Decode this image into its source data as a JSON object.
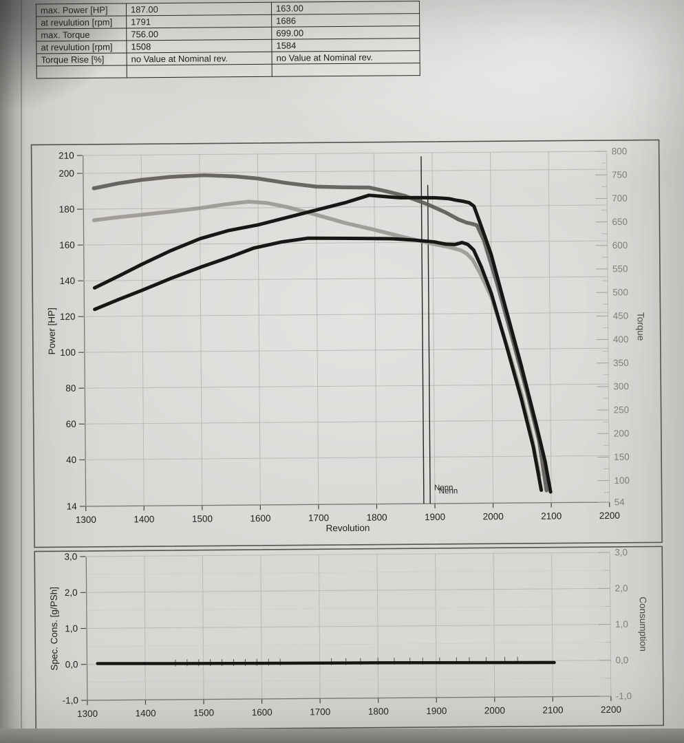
{
  "results_table": {
    "rows": [
      {
        "label": "max. Power [HP]",
        "values": [
          "187.00",
          "163.00"
        ]
      },
      {
        "label": "at revulution [rpm]",
        "values": [
          "1791",
          "1686"
        ]
      },
      {
        "label": "max. Torque",
        "values": [
          "756.00",
          "699.00"
        ]
      },
      {
        "label": "at revulution [rpm]",
        "values": [
          "1508",
          "1584"
        ]
      },
      {
        "label": "Torque Rise [%]",
        "values": [
          "no Value at Nominal rev.",
          "no Value at Nominal rev."
        ]
      },
      {
        "label": "",
        "values": [
          "",
          ""
        ]
      }
    ]
  },
  "colors": {
    "ink_dark": "#1e1e1c",
    "ink_faded": "#82807c",
    "grid": "#bcbab7",
    "grid_minor": "#cfcdca",
    "axis_line": "#7c7a76",
    "frame": "#55534f",
    "power_curve": "#171715",
    "torque_curve_1": "#5e5c5a",
    "torque_curve_2": "#9b9995"
  },
  "chart_data": [
    {
      "type": "line",
      "xlabel": "Revolution",
      "x_range": [
        1300,
        2200
      ],
      "x_ticks": {
        "values": [
          1300,
          1400,
          1500,
          1600,
          1700,
          1800,
          1900,
          2000,
          2100,
          2200
        ],
        "labels": [
          "1300",
          "1400",
          "1500",
          "1600",
          "1700",
          "1800",
          "1900",
          "2000",
          "2100",
          "2200"
        ]
      },
      "left_axis": {
        "label": "Power [HP]",
        "range": [
          14,
          210
        ],
        "tick_values": [
          210,
          200,
          180,
          160,
          140,
          120,
          100,
          80,
          60,
          40,
          14
        ],
        "tick_labels": [
          "210",
          "200",
          "180",
          "160",
          "140",
          "120",
          "100",
          "80",
          "60",
          "40",
          "14"
        ]
      },
      "right_axis": {
        "label": "Torque",
        "range": [
          54,
          800
        ],
        "tick_values": [
          800,
          750,
          700,
          650,
          600,
          550,
          500,
          450,
          400,
          350,
          300,
          250,
          200,
          150,
          100,
          54
        ],
        "tick_labels": [
          "800",
          "750",
          "700",
          "650",
          "600",
          "550",
          "500",
          "450",
          "400",
          "350",
          "300",
          "250",
          "200",
          "150",
          "100",
          "54"
        ],
        "minor_tick_values": [
          775,
          725,
          675,
          625,
          575,
          525,
          475,
          425,
          375,
          325,
          275,
          225,
          175,
          125,
          75
        ]
      },
      "markers": {
        "lines": [
          {
            "name": "nominal-speed-marker-line-1",
            "x": 1881,
            "y_from": 208,
            "y_to": 14
          },
          {
            "name": "nominal-speed-marker-line-2",
            "x": 1892,
            "y_from": 192,
            "y_to": 14
          }
        ],
        "labels": [
          {
            "text": "Nenn",
            "x": 1899,
            "y": 21.5
          },
          {
            "text": "Nenn",
            "x": 1907,
            "y": 19.6
          }
        ]
      },
      "series": [
        {
          "name": "torque-curve-run1",
          "axis": "right",
          "color_key": "torque_curve_1",
          "width": 5.5,
          "points": [
            [
              1318,
              730
            ],
            [
              1360,
              740
            ],
            [
              1400,
              747
            ],
            [
              1450,
              753
            ],
            [
              1508,
              756
            ],
            [
              1560,
              753
            ],
            [
              1600,
              748
            ],
            [
              1650,
              738
            ],
            [
              1700,
              730
            ],
            [
              1745,
              728
            ],
            [
              1791,
              727
            ],
            [
              1820,
              719
            ],
            [
              1852,
              709
            ],
            [
              1892,
              690
            ],
            [
              1922,
              673
            ],
            [
              1944,
              658
            ],
            [
              1958,
              651
            ],
            [
              1968,
              648
            ],
            [
              1976,
              645
            ],
            [
              1988,
              612
            ],
            [
              2010,
              520
            ],
            [
              2035,
              405
            ],
            [
              2060,
              288
            ],
            [
              2080,
              185
            ],
            [
              2092,
              80
            ]
          ]
        },
        {
          "name": "torque-curve-run2",
          "axis": "right",
          "color_key": "torque_curve_2",
          "width": 5.5,
          "points": [
            [
              1318,
              662
            ],
            [
              1360,
              668
            ],
            [
              1400,
              673
            ],
            [
              1450,
              679
            ],
            [
              1500,
              686
            ],
            [
              1545,
              694
            ],
            [
              1584,
              699
            ],
            [
              1615,
              696
            ],
            [
              1650,
              687
            ],
            [
              1700,
              670
            ],
            [
              1750,
              652
            ],
            [
              1800,
              637
            ],
            [
              1850,
              621
            ],
            [
              1900,
              606
            ],
            [
              1928,
              599
            ],
            [
              1948,
              592
            ],
            [
              1958,
              585
            ],
            [
              1968,
              572
            ],
            [
              1980,
              545
            ],
            [
              2000,
              492
            ],
            [
              2025,
              392
            ],
            [
              2050,
              285
            ],
            [
              2068,
              190
            ],
            [
              2080,
              112
            ]
          ]
        },
        {
          "name": "power-curve-run1",
          "axis": "left",
          "color_key": "power_curve",
          "width": 5,
          "points": [
            [
              1318,
              136
            ],
            [
              1360,
              142.5
            ],
            [
              1400,
              149
            ],
            [
              1450,
              156.5
            ],
            [
              1500,
              163
            ],
            [
              1550,
              167.5
            ],
            [
              1600,
              170.5
            ],
            [
              1650,
              174.5
            ],
            [
              1700,
              178.5
            ],
            [
              1750,
              182.5
            ],
            [
              1791,
              186.5
            ],
            [
              1815,
              185.8
            ],
            [
              1845,
              185
            ],
            [
              1875,
              185
            ],
            [
              1905,
              184.8
            ],
            [
              1928,
              184.3
            ],
            [
              1940,
              183.4
            ],
            [
              1953,
              182.7
            ],
            [
              1963,
              181.9
            ],
            [
              1971,
              180
            ],
            [
              1982,
              170
            ],
            [
              2000,
              153
            ],
            [
              2025,
              122
            ],
            [
              2050,
              91
            ],
            [
              2075,
              58
            ],
            [
              2090,
              37
            ],
            [
              2099,
              20
            ]
          ]
        },
        {
          "name": "power-curve-run2",
          "axis": "left",
          "color_key": "power_curve",
          "width": 5,
          "points": [
            [
              1318,
              124
            ],
            [
              1360,
              129.5
            ],
            [
              1400,
              134.5
            ],
            [
              1450,
              141
            ],
            [
              1500,
              147
            ],
            [
              1550,
              152.5
            ],
            [
              1592,
              157.5
            ],
            [
              1640,
              160.8
            ],
            [
              1686,
              162.8
            ],
            [
              1730,
              162.6
            ],
            [
              1780,
              162.4
            ],
            [
              1830,
              162.1
            ],
            [
              1870,
              161.2
            ],
            [
              1902,
              160.2
            ],
            [
              1922,
              158.9
            ],
            [
              1938,
              158.6
            ],
            [
              1950,
              159.7
            ],
            [
              1960,
              158.6
            ],
            [
              1970,
              155.5
            ],
            [
              1983,
              146
            ],
            [
              2000,
              131
            ],
            [
              2025,
              102
            ],
            [
              2050,
              72
            ],
            [
              2070,
              45
            ],
            [
              2083,
              21
            ]
          ]
        }
      ]
    },
    {
      "type": "line",
      "xlabel": "",
      "x_range": [
        1300,
        2200
      ],
      "x_ticks": {
        "values": [
          1300,
          1400,
          1500,
          1600,
          1700,
          1800,
          1900,
          2000,
          2100,
          2200
        ],
        "labels": [
          "1300",
          "1400",
          "1500",
          "1600",
          "1700",
          "1800",
          "1900",
          "2000",
          "2100",
          "2200"
        ]
      },
      "left_axis": {
        "label": "Spec. Cons. [g/PSh]",
        "range": [
          -1,
          3
        ],
        "tick_values": [
          3,
          2,
          1,
          0,
          -1
        ],
        "tick_labels": [
          "3,0",
          "2,0",
          "1,0",
          "0,0",
          "-1,0"
        ],
        "minor_gridline_values": [
          2.5,
          1.5,
          0.5,
          -0.5
        ]
      },
      "right_axis": {
        "label": "Consumption",
        "range": [
          -1,
          3
        ],
        "tick_values": [
          3,
          2,
          1,
          0,
          -1
        ],
        "tick_labels": [
          "3,0",
          "2,0",
          "1,0",
          "0,0",
          "-1,0"
        ],
        "minor_tick_values": [
          2.5,
          1.5,
          0.5,
          -0.5
        ]
      },
      "series": [
        {
          "name": "spec-consumption-curve",
          "axis": "left",
          "color_key": "power_curve",
          "width": 4.5,
          "points": [
            [
              1318,
              0.02
            ],
            [
              1500,
              0
            ],
            [
              1800,
              -0.02
            ],
            [
              2103,
              -0.05
            ]
          ]
        }
      ],
      "measurement_tick_rpms": [
        1452,
        1472,
        1492,
        1512,
        1532,
        1552,
        1572,
        1592,
        1612,
        1632,
        1720,
        1745,
        1770,
        1800,
        1828,
        1855,
        1877,
        1906,
        1935,
        1957,
        1986,
        2018,
        2040
      ]
    }
  ]
}
